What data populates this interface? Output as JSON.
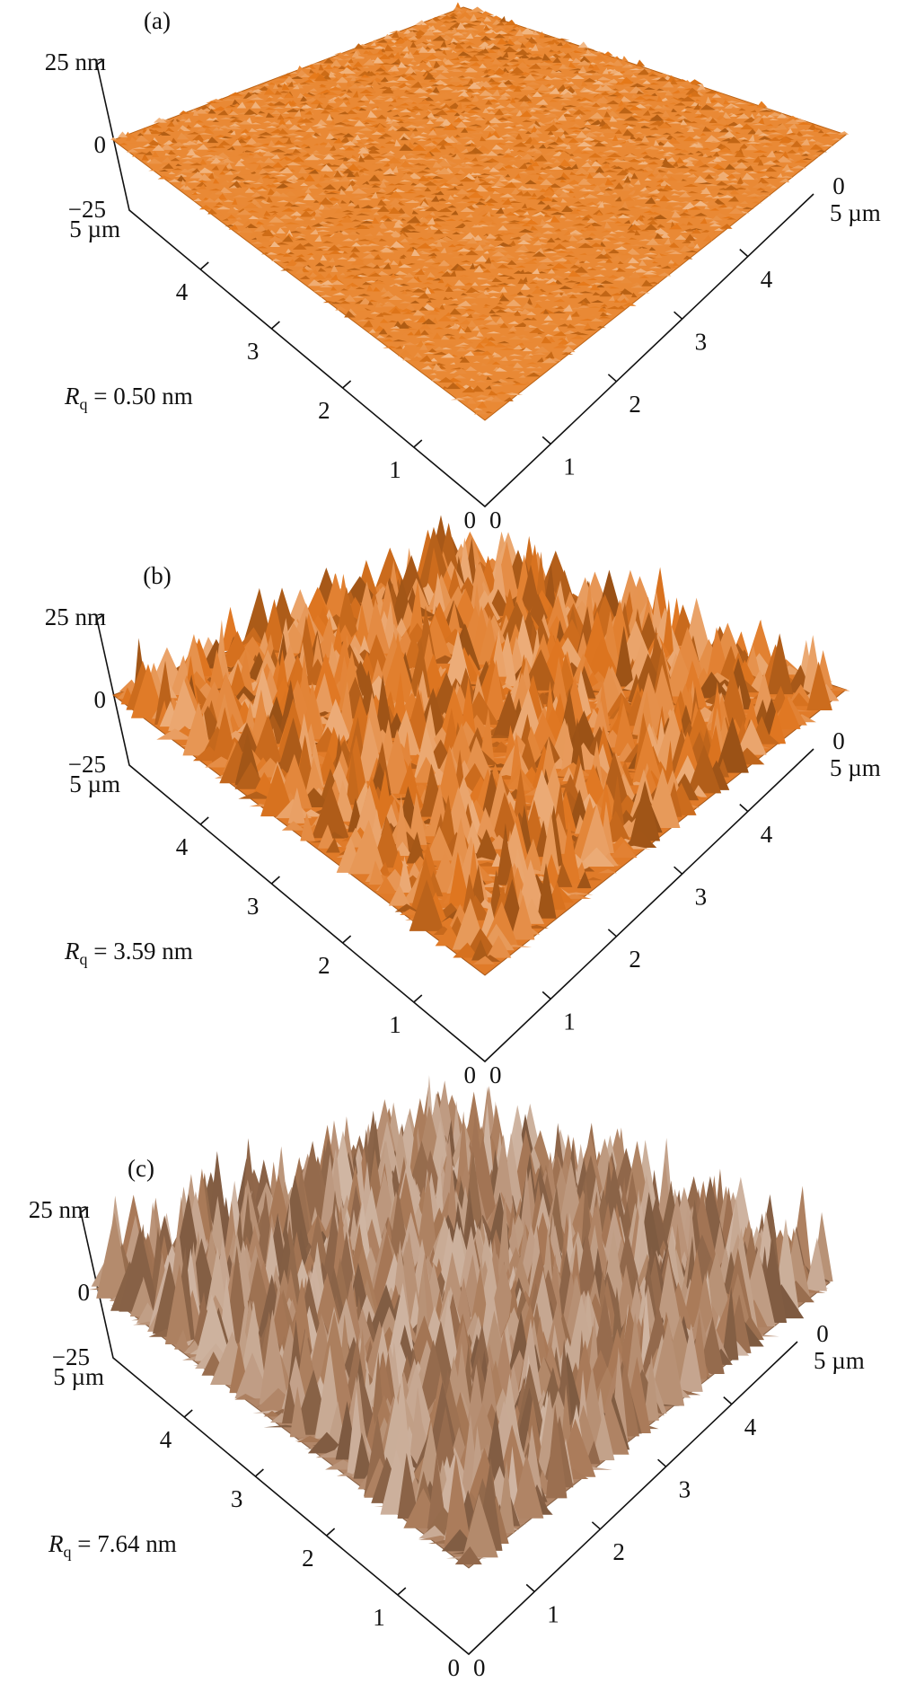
{
  "panels": [
    {
      "label": "(a)",
      "z_ticks": [
        "25 nm",
        "0",
        "−25"
      ],
      "left_axis": [
        "5 µm",
        "4",
        "3",
        "2",
        "1",
        "0"
      ],
      "right_axis": [
        "0",
        "1",
        "2",
        "3",
        "4",
        "5 µm"
      ],
      "back_tick": "0",
      "rq": {
        "symbol": "R",
        "subscript": "q",
        "text": " = 0.50 nm"
      }
    },
    {
      "label": "(b)",
      "z_ticks": [
        "25 nm",
        "0",
        "−25"
      ],
      "left_axis": [
        "5 µm",
        "4",
        "3",
        "2",
        "1",
        "0"
      ],
      "right_axis": [
        "0",
        "1",
        "2",
        "3",
        "4",
        "5 µm"
      ],
      "back_tick": "0",
      "rq": {
        "symbol": "R",
        "subscript": "q",
        "text": " = 3.59 nm"
      }
    },
    {
      "label": "(c)",
      "z_ticks": [
        "25 nm",
        "0",
        "−25"
      ],
      "left_axis": [
        "5 µm",
        "4",
        "3",
        "2",
        "1",
        "0"
      ],
      "right_axis": [
        "0",
        "1",
        "2",
        "3",
        "4",
        "5 µm"
      ],
      "back_tick": "0",
      "rq": {
        "symbol": "R",
        "subscript": "q",
        "text": " = 7.64 nm"
      }
    }
  ]
}
